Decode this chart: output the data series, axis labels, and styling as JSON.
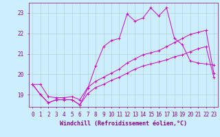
{
  "xlabel": "Windchill (Refroidissement éolien,°C)",
  "background_color": "#cceeff",
  "line_color": "#cc00cc",
  "grid_color": "#aacccc",
  "xlim": [
    -0.5,
    23.5
  ],
  "ylim": [
    18.4,
    23.5
  ],
  "yticks": [
    19,
    20,
    21,
    22,
    23
  ],
  "xticks": [
    0,
    1,
    2,
    3,
    4,
    5,
    6,
    7,
    8,
    9,
    10,
    11,
    12,
    13,
    14,
    15,
    16,
    17,
    18,
    19,
    20,
    21,
    22,
    23
  ],
  "series": [
    [
      19.5,
      19.5,
      18.9,
      18.85,
      18.85,
      18.9,
      18.75,
      19.35,
      19.65,
      19.85,
      20.05,
      20.25,
      20.55,
      20.75,
      20.95,
      21.05,
      21.15,
      21.35,
      21.55,
      21.75,
      21.95,
      22.05,
      22.15,
      20.05
    ],
    [
      19.5,
      19.0,
      18.6,
      18.75,
      18.75,
      18.75,
      18.5,
      19.05,
      19.35,
      19.5,
      19.7,
      19.85,
      20.05,
      20.25,
      20.4,
      20.5,
      20.6,
      20.7,
      20.85,
      20.95,
      21.1,
      21.25,
      21.35,
      19.85
    ],
    [
      19.5,
      19.0,
      18.6,
      18.75,
      18.75,
      18.75,
      18.5,
      19.3,
      20.4,
      21.35,
      21.65,
      21.75,
      22.95,
      22.6,
      22.75,
      23.25,
      22.85,
      23.25,
      21.75,
      21.45,
      20.65,
      20.55,
      20.5,
      20.45
    ]
  ],
  "title_color": "#880088",
  "axis_color": "#880088",
  "tick_color": "#880088",
  "label_color": "#880088",
  "label_fontsize": 6.0,
  "tick_fontsize": 5.5
}
